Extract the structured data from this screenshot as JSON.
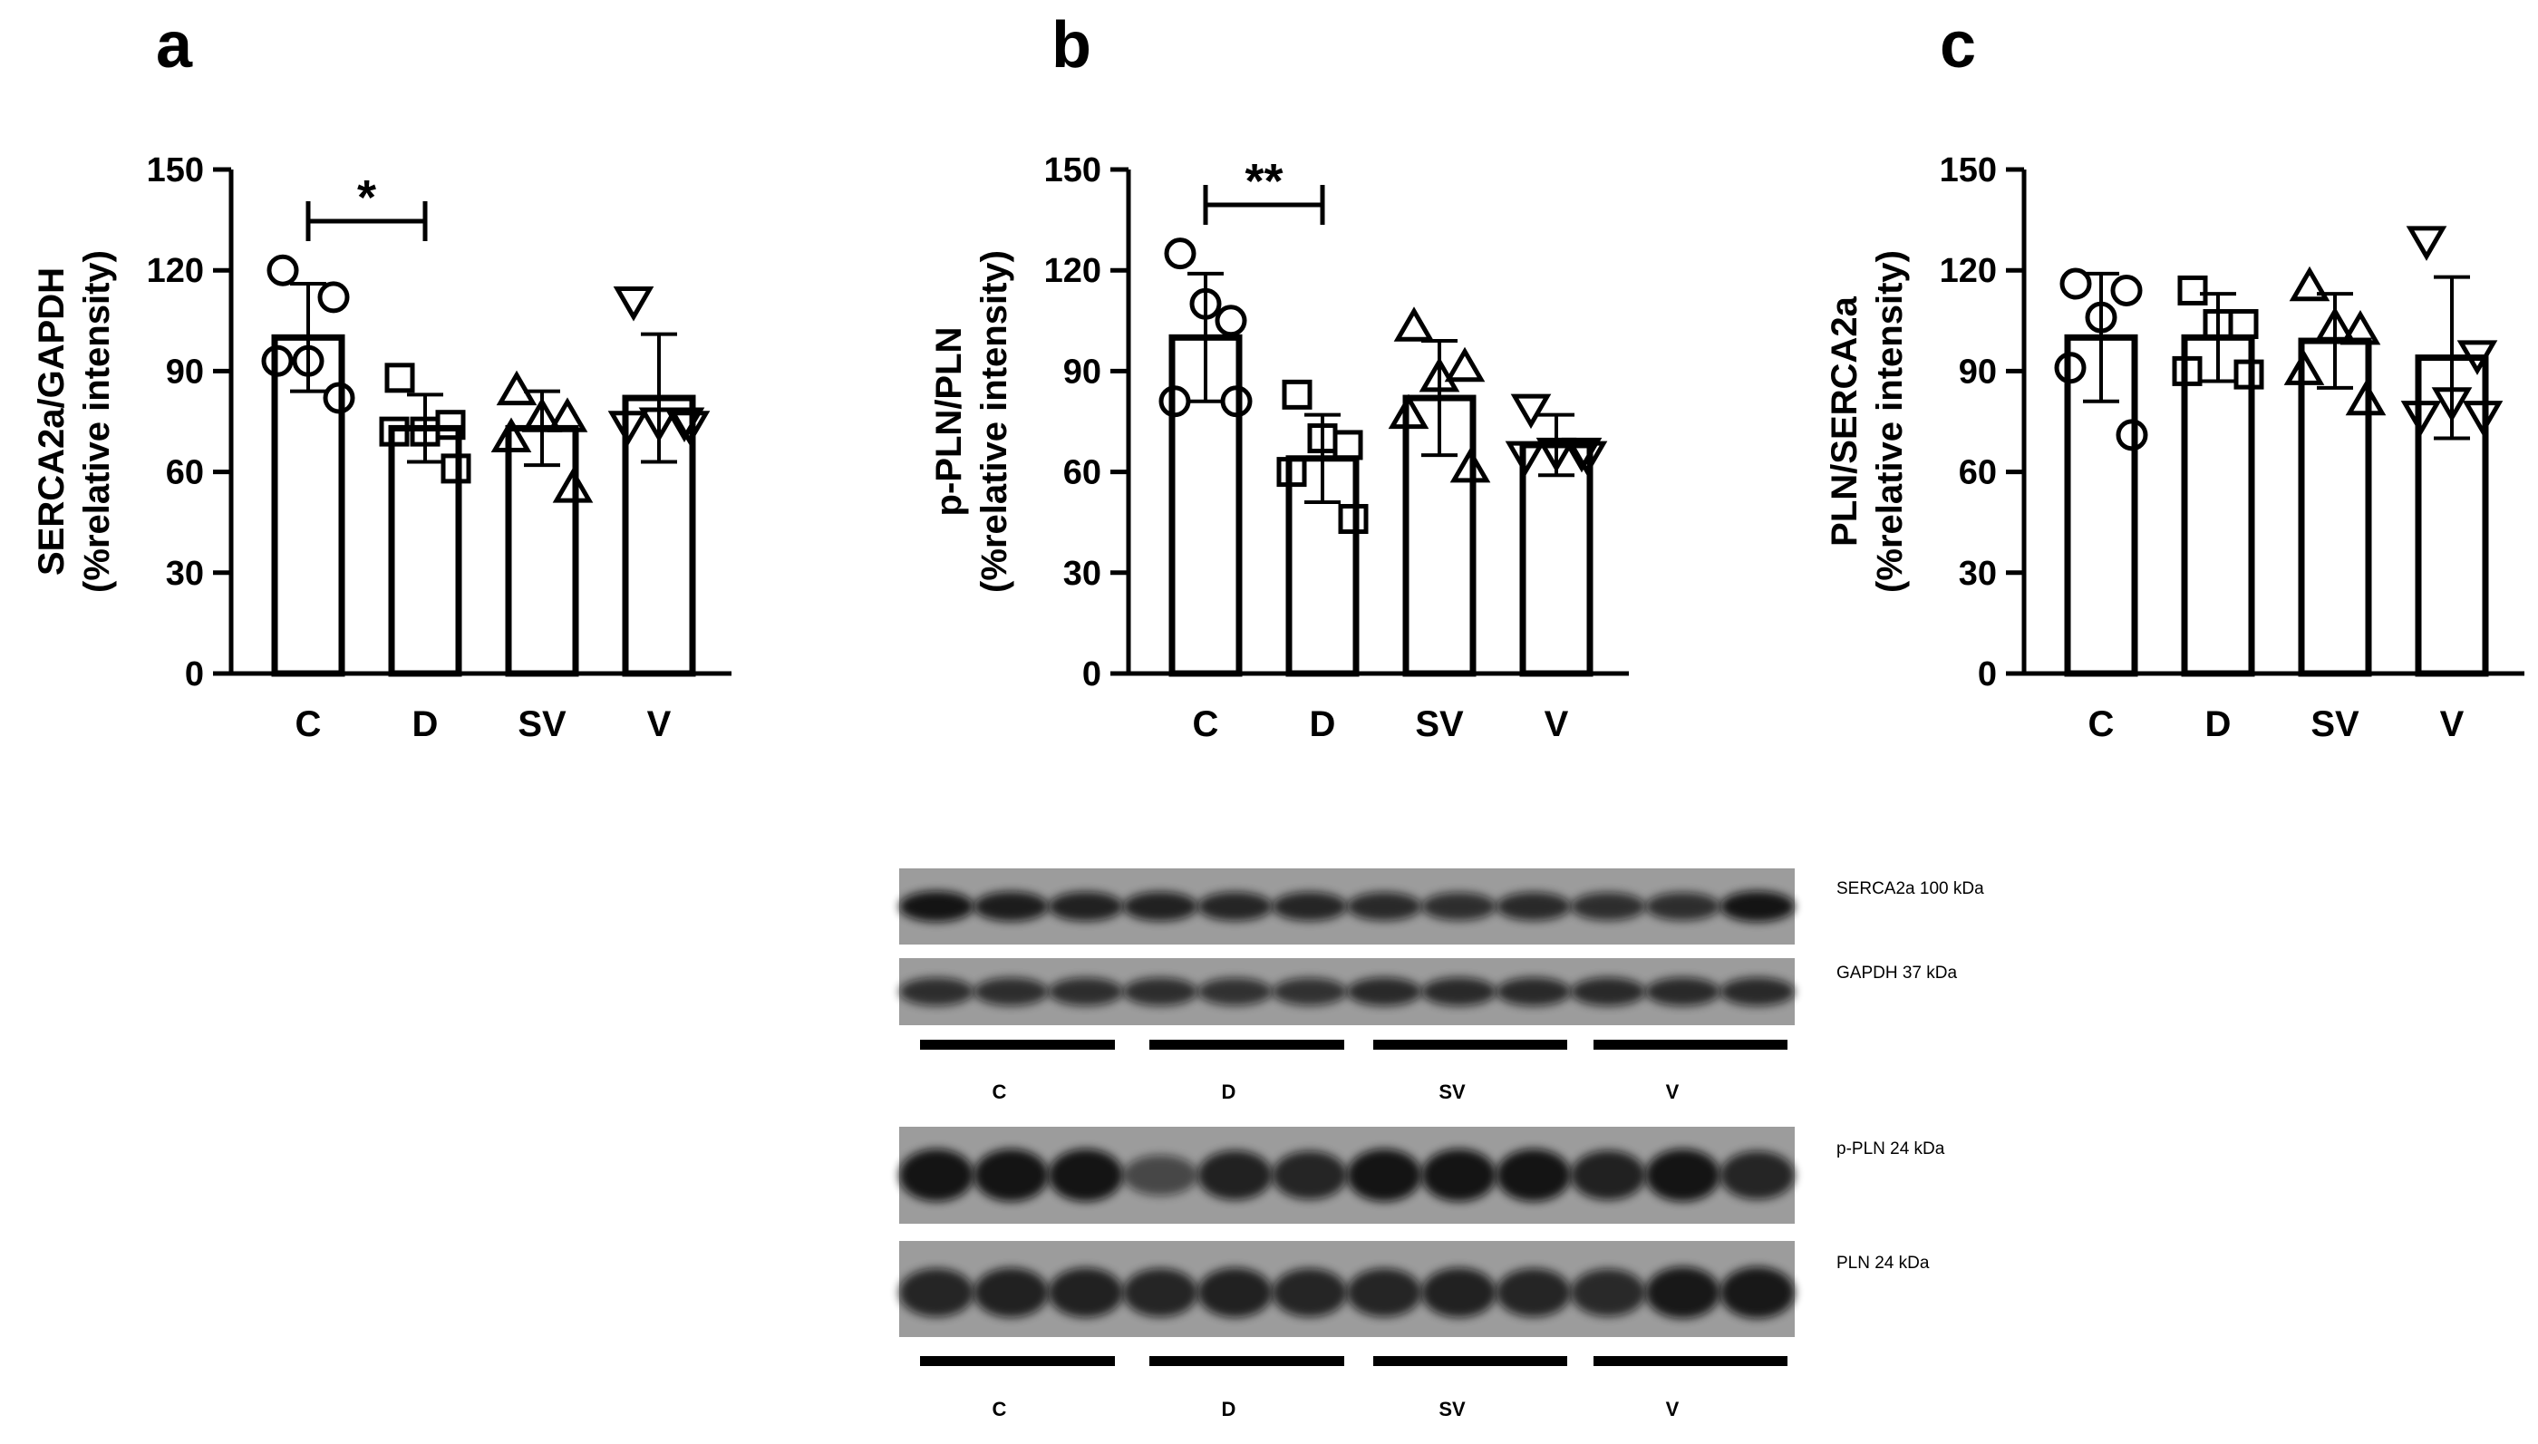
{
  "panels": [
    {
      "letter": "a",
      "ylabel": "SERCA2a/GAPDH",
      "ylabel2": "(%relative intensity)",
      "yticks": [
        "0",
        "30",
        "60",
        "90",
        "120",
        "150"
      ],
      "significance": "*"
    },
    {
      "letter": "b",
      "ylabel": "p-PLN/PLN",
      "ylabel2": "(%relative intensity)",
      "yticks": [
        "0",
        "30",
        "60",
        "90",
        "120",
        "150"
      ],
      "significance": "**"
    },
    {
      "letter": "c",
      "ylabel": "PLN/SERCA2a",
      "ylabel2": "(%relative intensity)",
      "yticks": [
        "0",
        "30",
        "60",
        "90",
        "120",
        "150"
      ],
      "significance": ""
    }
  ],
  "chart_data": [
    {
      "type": "bar",
      "panel": "a",
      "categories": [
        "C",
        "D",
        "SV",
        "V"
      ],
      "values": [
        100,
        73,
        73,
        82
      ],
      "sd": [
        16,
        10,
        11,
        19
      ],
      "points": [
        [
          120,
          112,
          93,
          93,
          82
        ],
        [
          88,
          74,
          72,
          72,
          61
        ],
        [
          84,
          76,
          76,
          70,
          55
        ],
        [
          111,
          75,
          75,
          74,
          74
        ]
      ],
      "markers": [
        "circle",
        "square",
        "triangle-up",
        "triangle-down"
      ],
      "ylim": [
        0,
        150
      ],
      "ylabel": "SERCA2a/GAPDH (%relative intensity)",
      "significance": {
        "pair": [
          "C",
          "D"
        ],
        "label": "*"
      }
    },
    {
      "type": "bar",
      "panel": "b",
      "categories": [
        "C",
        "D",
        "SV",
        "V"
      ],
      "values": [
        100,
        64,
        82,
        68
      ],
      "sd": [
        19,
        13,
        17,
        9
      ],
      "points": [
        [
          125,
          105,
          110,
          81,
          81
        ],
        [
          83,
          68,
          70,
          60,
          46
        ],
        [
          103,
          91,
          88,
          77,
          61
        ],
        [
          79,
          66,
          66,
          65,
          65
        ]
      ],
      "markers": [
        "circle",
        "square",
        "triangle-up",
        "triangle-down"
      ],
      "ylim": [
        0,
        150
      ],
      "ylabel": "p-PLN/PLN (%relative intensity)",
      "significance": {
        "pair": [
          "C",
          "D"
        ],
        "label": "**"
      }
    },
    {
      "type": "bar",
      "panel": "c",
      "categories": [
        "C",
        "D",
        "SV",
        "V"
      ],
      "values": [
        100,
        100,
        99,
        94
      ],
      "sd": [
        19,
        13,
        14,
        24
      ],
      "points": [
        [
          116,
          114,
          106,
          91,
          71
        ],
        [
          114,
          104,
          104,
          90,
          89
        ],
        [
          115,
          102,
          103,
          90,
          81
        ],
        [
          129,
          95,
          81,
          77,
          77
        ]
      ],
      "markers": [
        "circle",
        "square",
        "triangle-up",
        "triangle-down"
      ],
      "ylim": [
        0,
        150
      ],
      "ylabel": "PLN/SERCA2a (%relative intensity)"
    }
  ],
  "blots": {
    "groups": [
      "C",
      "D",
      "SV",
      "V"
    ],
    "rows": [
      {
        "label": "SERCA2a 100 kDa",
        "intensities": [
          1.0,
          0.9,
          0.85,
          0.85,
          0.8,
          0.8,
          0.75,
          0.7,
          0.75,
          0.7,
          0.7,
          1.0
        ]
      },
      {
        "label": "GAPDH 37 kDa",
        "intensities": [
          0.7,
          0.7,
          0.7,
          0.7,
          0.65,
          0.65,
          0.75,
          0.75,
          0.75,
          0.75,
          0.75,
          0.75
        ]
      },
      {
        "label": "p-PLN 24 kDa",
        "intensities": [
          1.0,
          1.0,
          1.0,
          0.4,
          0.85,
          0.8,
          1.0,
          1.0,
          1.0,
          0.85,
          1.0,
          0.8
        ]
      },
      {
        "label": "PLN 24 kDa",
        "intensities": [
          0.8,
          0.85,
          0.85,
          0.8,
          0.85,
          0.8,
          0.8,
          0.85,
          0.8,
          0.75,
          0.95,
          0.95
        ]
      }
    ],
    "lane_sets": [
      {
        "labels": [
          "C",
          "D",
          "SV",
          "V"
        ]
      },
      {
        "labels": [
          "C",
          "D",
          "SV",
          "V"
        ]
      }
    ]
  }
}
